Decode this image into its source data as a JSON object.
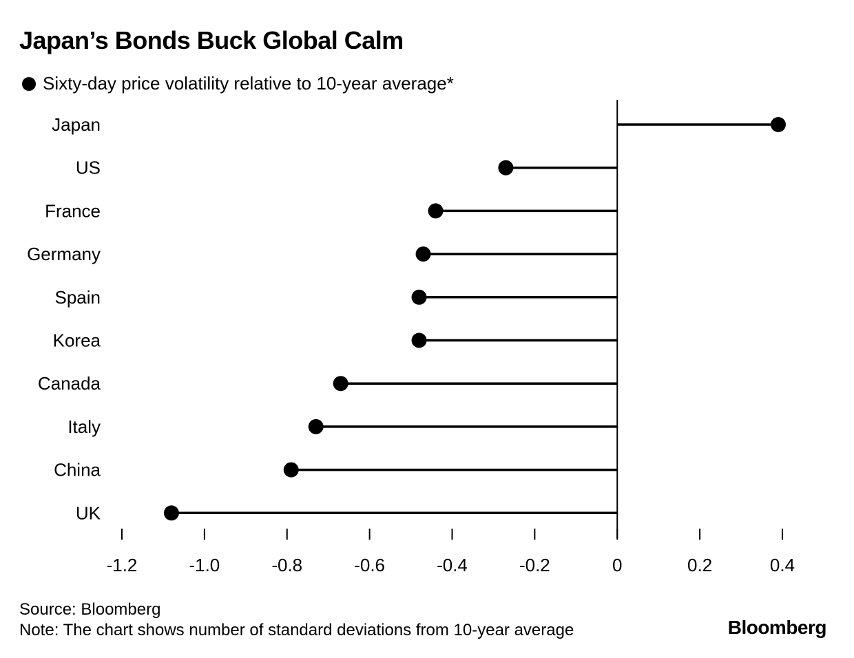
{
  "title": "Japan’s Bonds Buck Global Calm",
  "legend_label": "Sixty-day price volatility relative to 10-year average*",
  "source": "Source: Bloomberg",
  "note": "Note: The chart shows number of standard deviations from 10-year average",
  "brand": "Bloomberg",
  "chart_data": {
    "type": "lollipop",
    "orientation": "horizontal",
    "categories": [
      "Japan",
      "US",
      "France",
      "Germany",
      "Spain",
      "Korea",
      "Canada",
      "Italy",
      "China",
      "UK"
    ],
    "values": [
      0.39,
      -0.27,
      -0.44,
      -0.47,
      -0.48,
      -0.48,
      -0.67,
      -0.73,
      -0.79,
      -1.08
    ],
    "xlim": [
      -1.2,
      0.4
    ],
    "xticks": [
      -1.2,
      -1.0,
      -0.8,
      -0.6,
      -0.4,
      -0.2,
      0,
      0.2,
      0.4
    ],
    "xtick_labels": [
      "-1.2",
      "-1.0",
      "-0.8",
      "-0.6",
      "-0.4",
      "-0.2",
      "0",
      "0.2",
      "0.4"
    ],
    "colors": {
      "marker": "#000000",
      "line": "#000000"
    }
  }
}
